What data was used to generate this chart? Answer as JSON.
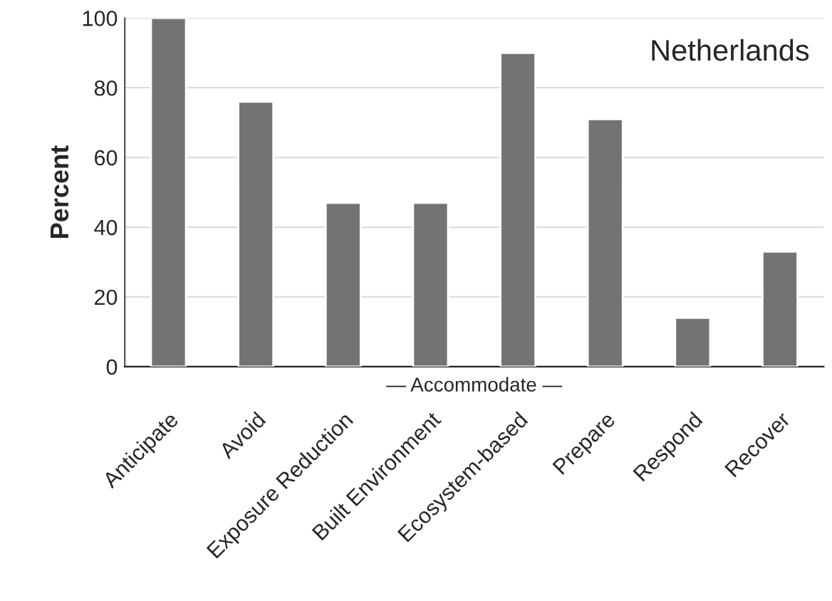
{
  "chart_data": {
    "type": "bar",
    "title": "Netherlands",
    "ylabel": "Percent",
    "categories": [
      "Anticipate",
      "Avoid",
      "Exposure Reduction",
      "Built Environment",
      "Ecosystem-based",
      "Prepare",
      "Respond",
      "Recover"
    ],
    "values": [
      100,
      76,
      47,
      47,
      90,
      71,
      14,
      33
    ],
    "color": "#737373",
    "ylim": [
      0,
      100
    ],
    "yticks": [
      0,
      20,
      40,
      60,
      80,
      100
    ],
    "grid": "y",
    "annotations": [
      "— Accommodate —"
    ]
  }
}
